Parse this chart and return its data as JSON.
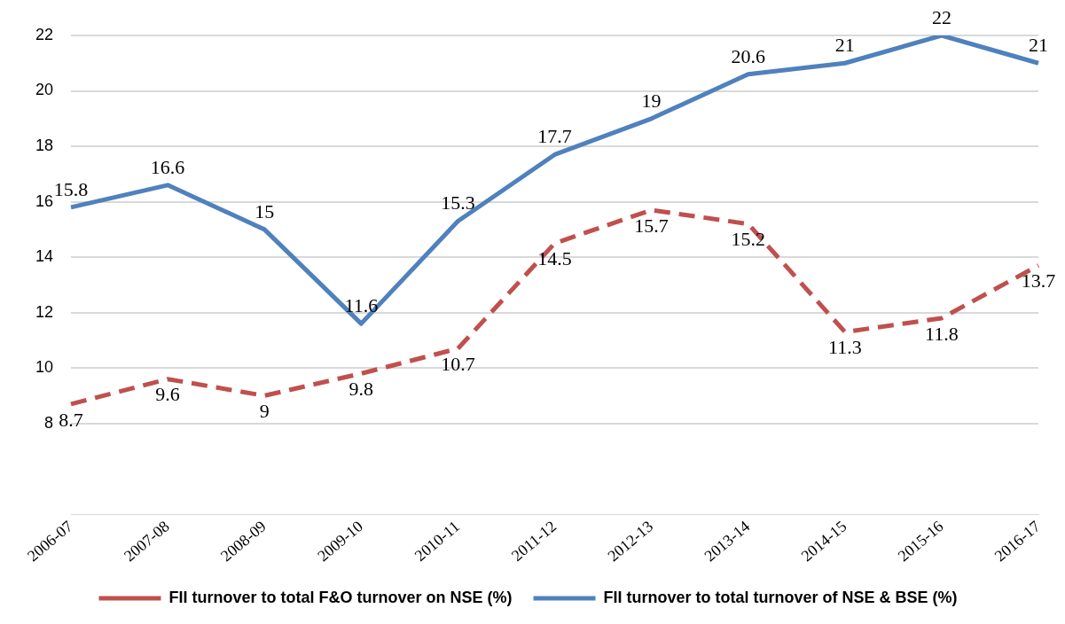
{
  "chart_data": {
    "type": "line",
    "categories": [
      "2006-07",
      "2007-08",
      "2008-09",
      "2009-10",
      "2010-11",
      "2011-12",
      "2012-13",
      "2013-14",
      "2014-15",
      "2015-16",
      "2016-17"
    ],
    "series": [
      {
        "name": "FII turnover to total F&O turnover on NSE (%)",
        "color": "#c0504d",
        "line_style": "dashed",
        "values": [
          8.7,
          9.6,
          9,
          9.8,
          10.7,
          14.5,
          15.7,
          15.2,
          11.3,
          11.8,
          13.7
        ]
      },
      {
        "name": "FII turnover to total turnover of NSE & BSE (%)",
        "color": "#4f81bd",
        "line_style": "solid",
        "values": [
          15.8,
          16.6,
          15,
          11.6,
          15.3,
          17.7,
          19,
          20.6,
          21,
          22,
          21
        ]
      }
    ],
    "ylim": [
      4.7,
      22
    ],
    "yticks": [
      8,
      10,
      12,
      14,
      16,
      18,
      20,
      22
    ],
    "grid": "y",
    "legend": "bottom",
    "marker": "none",
    "data_labels": true
  }
}
